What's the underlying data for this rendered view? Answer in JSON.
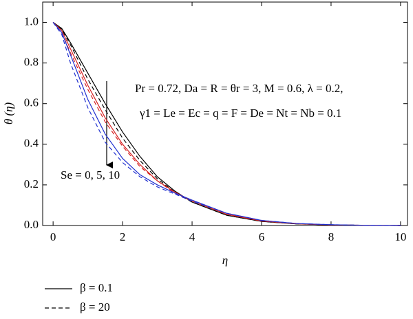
{
  "chart_data": {
    "type": "line",
    "x_label": "η",
    "y_label": "θ (η)",
    "x": [
      0,
      0.25,
      0.5,
      1,
      1.5,
      2,
      2.5,
      3,
      3.5,
      4,
      5,
      6,
      7,
      8,
      9,
      10
    ],
    "series": [
      {
        "color": "#000000",
        "dash": "solid",
        "values": [
          1,
          0.97,
          0.9,
          0.75,
          0.6,
          0.46,
          0.34,
          0.24,
          0.17,
          0.115,
          0.05,
          0.02,
          0.008,
          0.003,
          0.001,
          0
        ]
      },
      {
        "color": "#000000",
        "dash": "dashed",
        "values": [
          1,
          0.965,
          0.89,
          0.72,
          0.57,
          0.43,
          0.32,
          0.23,
          0.165,
          0.115,
          0.05,
          0.02,
          0.008,
          0.003,
          0.001,
          0
        ]
      },
      {
        "color": "#d62020",
        "dash": "solid",
        "values": [
          1,
          0.96,
          0.87,
          0.69,
          0.53,
          0.4,
          0.3,
          0.22,
          0.165,
          0.12,
          0.055,
          0.022,
          0.009,
          0.003,
          0.001,
          0
        ]
      },
      {
        "color": "#d62020",
        "dash": "dashed",
        "values": [
          1,
          0.95,
          0.85,
          0.67,
          0.51,
          0.39,
          0.29,
          0.22,
          0.16,
          0.12,
          0.055,
          0.022,
          0.009,
          0.003,
          0.001,
          0
        ]
      },
      {
        "color": "#2030d0",
        "dash": "solid",
        "values": [
          1,
          0.95,
          0.84,
          0.62,
          0.45,
          0.33,
          0.25,
          0.2,
          0.16,
          0.125,
          0.06,
          0.025,
          0.01,
          0.004,
          0.001,
          0
        ]
      },
      {
        "color": "#2030d0",
        "dash": "dashed",
        "values": [
          1,
          0.94,
          0.8,
          0.58,
          0.41,
          0.31,
          0.24,
          0.19,
          0.155,
          0.12,
          0.06,
          0.025,
          0.01,
          0.004,
          0.001,
          0
        ]
      }
    ],
    "xlim": [
      -0.3,
      10.2
    ],
    "ylim": [
      0,
      1.1
    ],
    "xticks": [
      0,
      2,
      4,
      6,
      8,
      10
    ],
    "yticks": [
      {
        "value": 0,
        "label": "0.0"
      },
      {
        "value": 0.2,
        "label": "0.2"
      },
      {
        "value": 0.4,
        "label": "0.4"
      },
      {
        "value": 0.6,
        "label": "0.6"
      },
      {
        "value": 0.8,
        "label": "0.8"
      },
      {
        "value": 1,
        "label": "1.0"
      }
    ],
    "annotations": [
      "Pr = 0.72, Da = R = θr = 3, M = 0.6, λ = 0.2,",
      "γ1 = Le = Ec = q = F = De = Nt = Nb = 0.1",
      "Se = 0, 5, 10"
    ],
    "legend": [
      {
        "label": "β = 0.1",
        "dash": "solid"
      },
      {
        "label": "β = 20",
        "dash": "dashed"
      }
    ]
  }
}
